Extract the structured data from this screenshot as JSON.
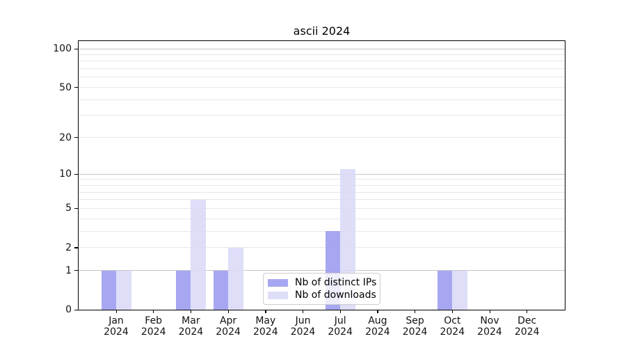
{
  "chart_data": {
    "type": "bar",
    "title": "ascii 2024",
    "categories": [
      "Jan 2024",
      "Feb 2024",
      "Mar 2024",
      "Apr 2024",
      "May 2024",
      "Jun 2024",
      "Jul 2024",
      "Aug 2024",
      "Sep 2024",
      "Oct 2024",
      "Nov 2024",
      "Dec 2024"
    ],
    "x_months": [
      "Jan",
      "Feb",
      "Mar",
      "Apr",
      "May",
      "Jun",
      "Jul",
      "Aug",
      "Sep",
      "Oct",
      "Nov",
      "Dec"
    ],
    "x_year": "2024",
    "series": [
      {
        "name": "Nb of distinct IPs",
        "color": "#9898ee",
        "values": [
          1,
          0,
          1,
          1,
          0,
          0,
          3,
          0,
          0,
          1,
          0,
          0
        ]
      },
      {
        "name": "Nb of downloads",
        "color": "#d8d8f8",
        "values": [
          1,
          0,
          6,
          2,
          0,
          0,
          11,
          0,
          0,
          1,
          0,
          0
        ]
      }
    ],
    "y_scale": "log1p",
    "y_ticks": [
      0,
      1,
      2,
      5,
      10,
      20,
      50,
      100
    ],
    "y_gridlines_decade": [
      1,
      10,
      100
    ],
    "y_gridlines_minor": [
      2,
      3,
      4,
      5,
      6,
      7,
      8,
      9,
      20,
      30,
      40,
      50,
      60,
      70,
      80,
      90
    ],
    "ylim": [
      0,
      115
    ],
    "grid": true,
    "legend_position": "lower center",
    "xlabel": "",
    "ylabel": ""
  },
  "colors": {
    "background": "#ffffff",
    "axis": "#000000",
    "grid_decade": "#c6c6c6",
    "grid_minor": "#e8e8e8",
    "tick_text": "#111111",
    "legend_border": "#cccccc"
  }
}
